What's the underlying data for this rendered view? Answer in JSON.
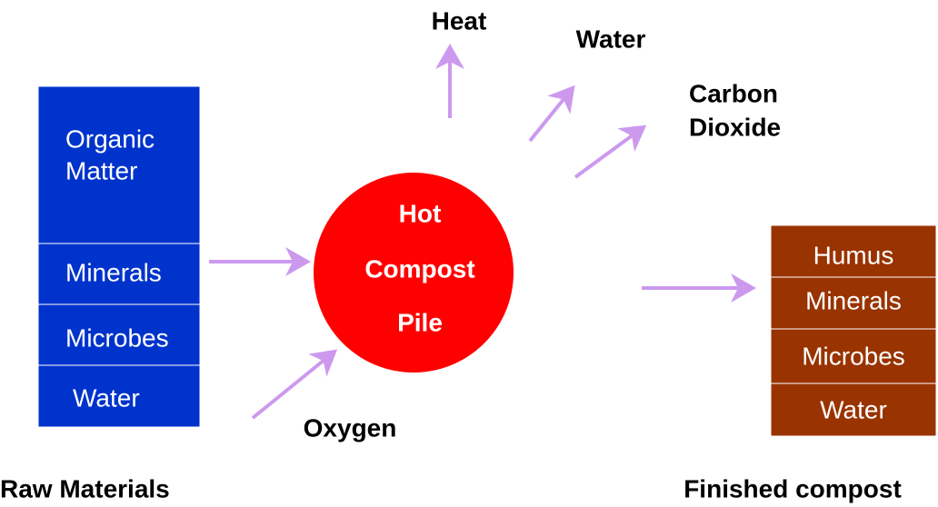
{
  "raw_materials": {
    "label": "Raw Materials",
    "items": [
      [
        "Organic",
        "Matter"
      ],
      "Minerals",
      "Microbes",
      "Water"
    ]
  },
  "pile": {
    "lines": [
      "Hot",
      "Compost",
      "Pile"
    ]
  },
  "emissions": {
    "heat": "Heat",
    "water": "Water",
    "carbon_dioxide": [
      "Carbon",
      "Dioxide"
    ]
  },
  "input": {
    "oxygen": "Oxygen"
  },
  "finished_compost": {
    "label": "Finished compost",
    "items": [
      "Humus",
      "Minerals",
      "Microbes",
      "Water"
    ]
  }
}
